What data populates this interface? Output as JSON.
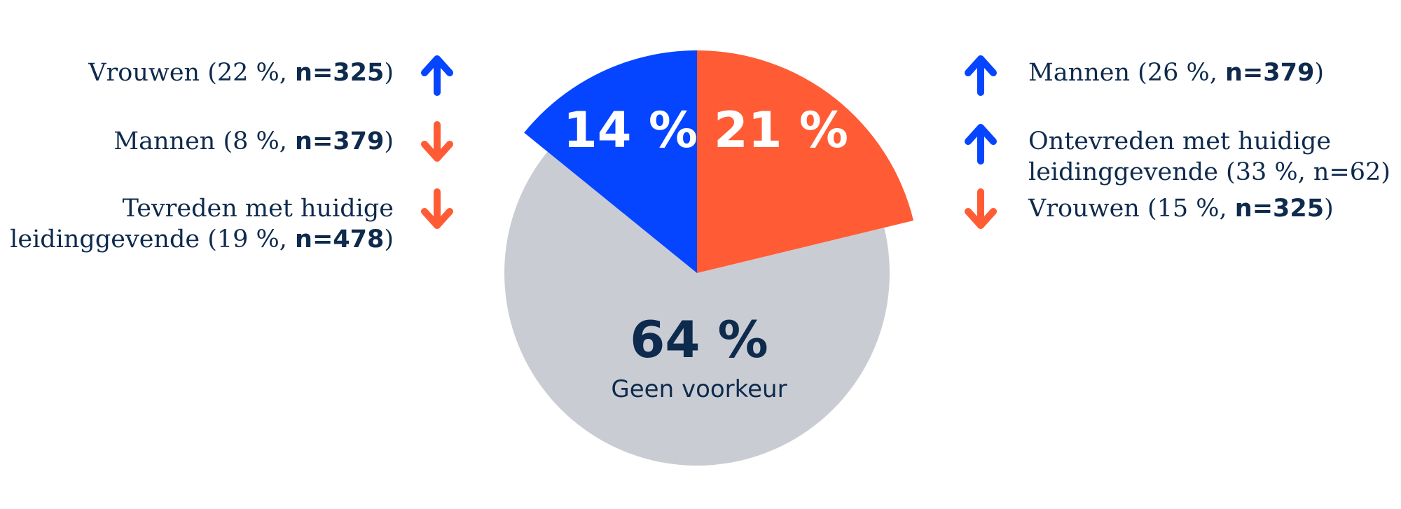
{
  "chart_data": {
    "type": "pie",
    "slices": [
      {
        "label": "14 %",
        "value": 14,
        "color": "#0545ff"
      },
      {
        "label": "21 %",
        "value": 21,
        "color": "#ff5c35"
      },
      {
        "label": "64 %",
        "sublabel": "Geen voorkeur",
        "value": 64,
        "color": "#c9cdd3"
      }
    ]
  },
  "notes_left": [
    {
      "direction": "up",
      "color": "#0545ff",
      "lines": [
        [
          {
            "t": "Vrouwen (22 %, "
          },
          {
            "t": "n=325",
            "b": true
          },
          {
            "t": ")"
          }
        ]
      ]
    },
    {
      "direction": "down",
      "color": "#ff5c35",
      "lines": [
        [
          {
            "t": "Mannen (8 %, "
          },
          {
            "t": "n=379",
            "b": true
          },
          {
            "t": ")"
          }
        ]
      ]
    },
    {
      "direction": "down",
      "color": "#ff5c35",
      "lines": [
        [
          {
            "t": "Tevreden met huidige"
          }
        ],
        [
          {
            "t": "leidinggevende (19 %, "
          },
          {
            "t": "n=478",
            "b": true
          },
          {
            "t": ")"
          }
        ]
      ]
    }
  ],
  "notes_right": [
    {
      "direction": "up",
      "color": "#0545ff",
      "lines": [
        [
          {
            "t": "Mannen (26 %, "
          },
          {
            "t": "n=379",
            "b": true
          },
          {
            "t": ")"
          }
        ]
      ]
    },
    {
      "direction": "up",
      "color": "#0545ff",
      "lines": [
        [
          {
            "t": "Ontevreden met huidige"
          }
        ],
        [
          {
            "t": "leidinggevende (33 %, n=62)"
          }
        ]
      ]
    },
    {
      "direction": "down",
      "color": "#ff5c35",
      "lines": [
        [
          {
            "t": "Vrouwen (15 %, "
          },
          {
            "t": "n=325",
            "b": true
          },
          {
            "t": ")"
          }
        ]
      ]
    }
  ]
}
